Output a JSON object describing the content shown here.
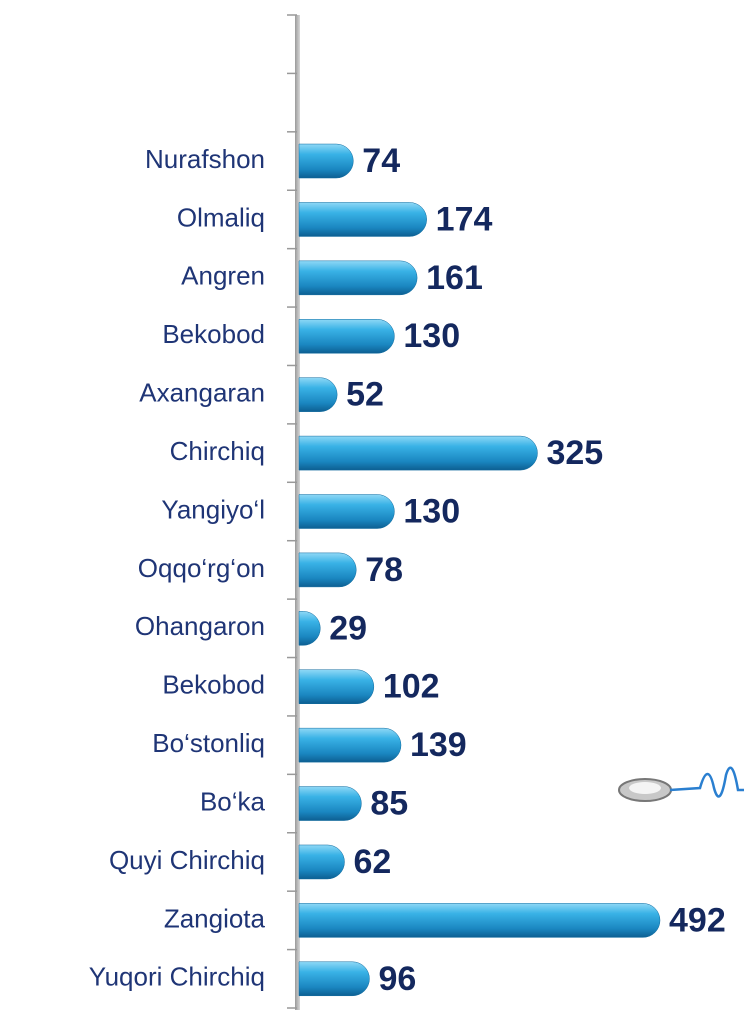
{
  "chart_data": {
    "type": "bar",
    "orientation": "horizontal",
    "color": "#2aa7dd",
    "categories": [
      null,
      null,
      "Nurafshon",
      "Olmaliq",
      "Angren",
      "Bekobod",
      "Axangaran",
      "Chirchiq",
      "Yangiyo‘l",
      "Oqqo‘rg‘on",
      "Ohangaron",
      "Bekobod",
      "Bo‘stonliq",
      "Bo‘ka",
      "Quyi Chirchiq",
      "Zangiota",
      "Yuqori Chirchiq"
    ],
    "values": [
      null,
      null,
      74,
      174,
      161,
      130,
      52,
      325,
      130,
      78,
      29,
      102,
      139,
      85,
      62,
      492,
      96
    ]
  }
}
